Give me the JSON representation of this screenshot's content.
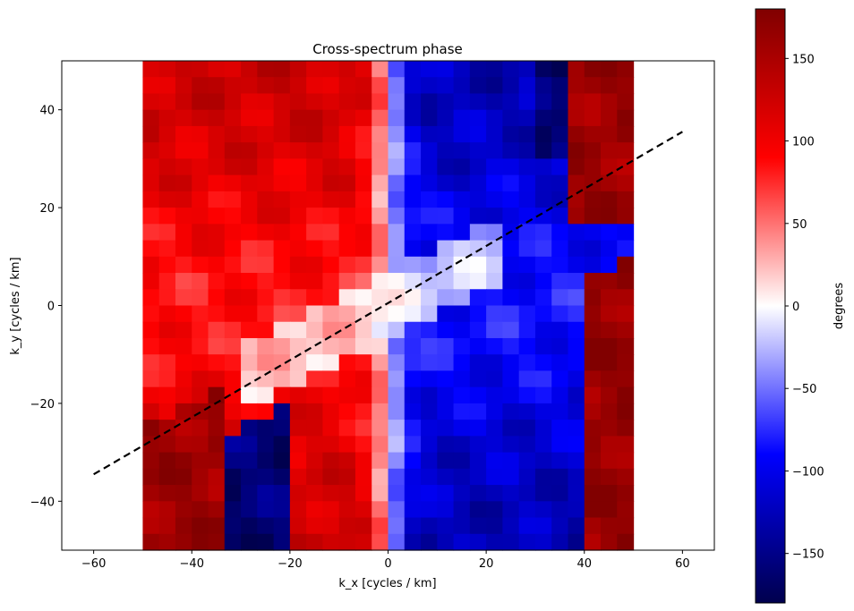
{
  "chart_data": {
    "type": "heatmap",
    "title": "Cross-spectrum phase",
    "xlabel": "k_x [cycles / km]",
    "ylabel": "k_y [cycles / km]",
    "colorbar_label": "degrees",
    "colormap": "seismic",
    "xlim": [
      -66.5,
      66.5
    ],
    "ylim": [
      -50,
      50
    ],
    "extent": [
      -50,
      50,
      -50,
      50
    ],
    "grid_shape": [
      30,
      30
    ],
    "x_ticks": [
      -60,
      -40,
      -20,
      0,
      20,
      40,
      60
    ],
    "x_tick_labels": [
      "−60",
      "−40",
      "−20",
      "0",
      "20",
      "40",
      "60"
    ],
    "y_ticks": [
      -40,
      -20,
      0,
      20,
      40
    ],
    "y_tick_labels": [
      "−40",
      "−20",
      "0",
      "20",
      "40"
    ],
    "color_range": [
      -180,
      180
    ],
    "colorbar_ticks": [
      150,
      100,
      50,
      0,
      -50,
      -100,
      -150
    ],
    "colorbar_tick_labels": [
      "150",
      "100",
      "50",
      "0",
      "−50",
      "−100",
      "−150"
    ],
    "line": {
      "style": "dashed",
      "color": "#000000",
      "x": [
        -60,
        60
      ],
      "y": [
        -34.5,
        35.5
      ]
    },
    "grid": false
  }
}
